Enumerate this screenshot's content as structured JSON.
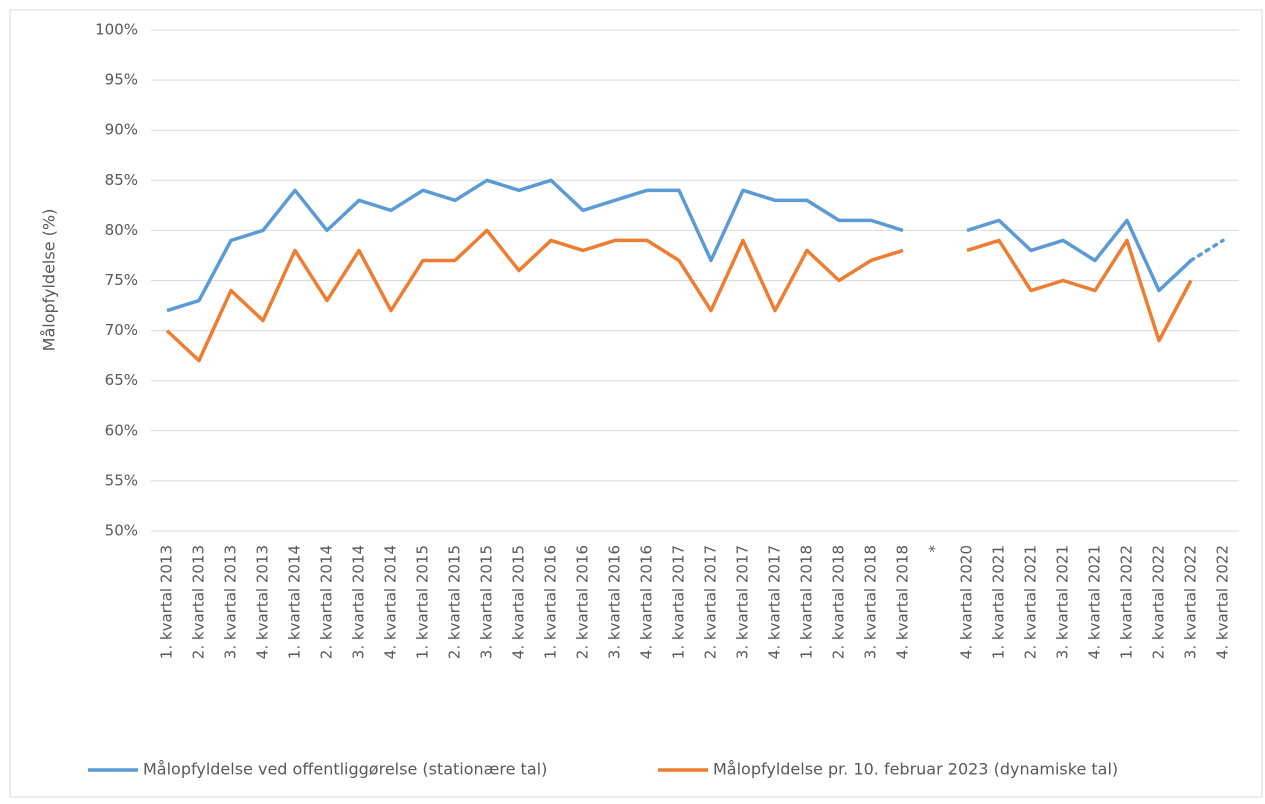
{
  "chart_data": {
    "type": "line",
    "y_label": "Målopfyldelse (%)",
    "categories": [
      "1. kvartal 2013",
      "2. kvartal 2013",
      "3. kvartal 2013",
      "4. kvartal 2013",
      "1. kvartal 2014",
      "2. kvartal 2014",
      "3. kvartal 2014",
      "4. kvartal 2014",
      "1. kvartal 2015",
      "2. kvartal 2015",
      "3. kvartal 2015",
      "4. kvartal 2015",
      "1. kvartal 2016",
      "2. kvartal 2016",
      "3. kvartal 2016",
      "4. kvartal 2016",
      "1. kvartal 2017",
      "2. kvartal 2017",
      "3. kvartal 2017",
      "4. kvartal 2017",
      "1. kvartal 2018",
      "2. kvartal 2018",
      "3. kvartal 2018",
      "4. kvartal 2018",
      "*",
      "4. kvartal 2020",
      "1. kvartal 2021",
      "2. kvartal 2021",
      "3. kvartal 2021",
      "4. kvartal 2021",
      "1. kvartal 2022",
      "2. kvartal 2022",
      "3. kvartal 2022",
      "4. kvartal 2022"
    ],
    "series": [
      {
        "name": "Målopfyldelse ved offentliggørelse (stationære tal)",
        "color": "#5b9bd5",
        "dashed_last_segment": true,
        "values": [
          72,
          73,
          79,
          80,
          84,
          80,
          83,
          82,
          84,
          83,
          85,
          84,
          85,
          82,
          83,
          84,
          84,
          77,
          84,
          83,
          83,
          81,
          81,
          80,
          null,
          80,
          81,
          78,
          79,
          77,
          81,
          74,
          77,
          79
        ]
      },
      {
        "name": "Målopfyldelse pr. 10. februar 2023 (dynamiske tal)",
        "color": "#ed7d31",
        "values": [
          70,
          67,
          74,
          71,
          78,
          73,
          78,
          72,
          77,
          77,
          80,
          76,
          79,
          78,
          79,
          79,
          77,
          72,
          79,
          72,
          78,
          75,
          77,
          78,
          null,
          78,
          79,
          74,
          75,
          74,
          79,
          69,
          75,
          null
        ]
      }
    ],
    "ylim": [
      50,
      100
    ],
    "yticks": [
      {
        "value": 50,
        "label": "50%"
      },
      {
        "value": 55,
        "label": "55%"
      },
      {
        "value": 60,
        "label": "60%"
      },
      {
        "value": 65,
        "label": "65%"
      },
      {
        "value": 70,
        "label": "70%"
      },
      {
        "value": 75,
        "label": "75%"
      },
      {
        "value": 80,
        "label": "80%"
      },
      {
        "value": 85,
        "label": "85%"
      },
      {
        "value": 90,
        "label": "90%"
      },
      {
        "value": 95,
        "label": "95%"
      },
      {
        "value": 100,
        "label": "100%"
      }
    ],
    "grid": true,
    "legend": "bottom"
  }
}
